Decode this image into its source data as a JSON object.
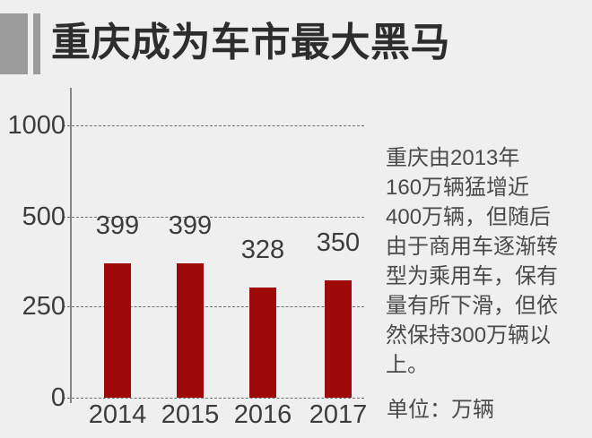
{
  "page": {
    "title": "重庆成为车市最大黑马"
  },
  "chart_data": {
    "type": "bar",
    "title": "重庆成为车市最大黑马",
    "categories": [
      "2014",
      "2015",
      "2016",
      "2017"
    ],
    "values": [
      399,
      399,
      328,
      350
    ],
    "y_ticks": [
      0,
      250,
      500,
      1000
    ],
    "unit": "万辆",
    "bar_color": "#9e0a0a",
    "grid": "dashed-horizontal",
    "legend": "none",
    "value_labels": true
  },
  "annotation": {
    "paragraph": "重庆由2013年\n160万辆猛增近\n400万辆，但随后\n由于商用车逐渐转\n型为乘用车，保有\n量有所下滑，但依\n然保持300万辆以\n上。",
    "unit_label": "单位：万辆"
  },
  "colors": {
    "background": "#efefef",
    "accent_gray": "#9b9b9b",
    "title_text": "#2d2d2d",
    "axis_text": "#3c3c3c",
    "body_text": "#4a4a4a",
    "bar": "#9e0a0a"
  }
}
